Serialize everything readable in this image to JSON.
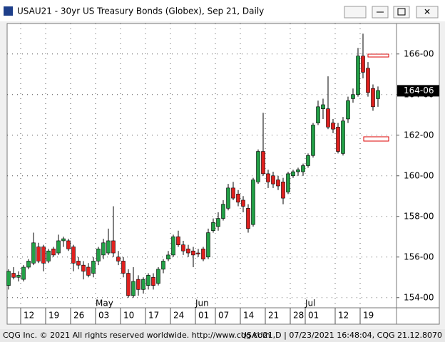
{
  "window_title": "USAU21 - 30yr US Treasury Bonds (Globex), Sep 21, Daily",
  "footer_left": "CQG Inc. © 2021 All rights reserved worldwide. http://www.cqg.com",
  "footer_right": "USAU21,D | 07/23/2021 16:48:04, CQG 21.12.8070",
  "chart_data": {
    "type": "candlestick",
    "categories": [
      null,
      null,
      null,
      "12",
      null,
      null,
      null,
      null,
      "19",
      null,
      null,
      null,
      null,
      "26",
      null,
      null,
      null,
      null,
      "03",
      null,
      null,
      null,
      null,
      "10",
      null,
      null,
      null,
      null,
      "17",
      null,
      null,
      null,
      null,
      "24",
      null,
      null,
      null,
      null,
      "01",
      null,
      null,
      null,
      "07",
      null,
      null,
      null,
      null,
      "14",
      null,
      null,
      null,
      null,
      "21",
      null,
      null,
      null,
      null,
      "28",
      null,
      null,
      "01",
      null,
      null,
      null,
      null,
      null,
      "12",
      null,
      null,
      null,
      null,
      "19",
      null,
      null,
      null
    ],
    "months": [
      {
        "label": "May",
        "index": 18
      },
      {
        "label": "Jun",
        "index": 38
      },
      {
        "label": "Jul",
        "index": 60
      }
    ],
    "open": [
      154.6,
      155.2,
      155.0,
      154.9,
      155.5,
      155.7,
      156.5,
      156.5,
      155.8,
      156.4,
      156.2,
      156.8,
      156.8,
      156.5,
      155.8,
      155.6,
      155.5,
      155.2,
      155.8,
      156.1,
      156.2,
      156.8,
      156.0,
      155.8,
      155.2,
      154.1,
      154.9,
      154.4,
      154.6,
      155.0,
      154.7,
      155.4,
      155.9,
      156.1,
      157.0,
      156.6,
      156.4,
      156.3,
      156.2,
      156.4,
      156.0,
      157.3,
      157.5,
      157.9,
      158.4,
      159.4,
      159.1,
      158.8,
      158.4,
      157.6,
      159.7,
      161.2,
      160.1,
      160.0,
      159.8,
      159.7,
      159.2,
      160.0,
      160.2,
      160.2,
      160.5,
      161.0,
      162.6,
      163.3,
      163.3,
      162.6,
      162.4,
      161.1,
      162.8,
      163.8,
      164.0,
      165.9,
      165.3,
      164.3,
      163.8
    ],
    "high": [
      155.4,
      155.5,
      155.3,
      155.6,
      155.9,
      157.2,
      156.7,
      156.6,
      156.4,
      156.5,
      157.1,
      157.0,
      156.9,
      156.6,
      156.0,
      155.8,
      155.7,
      156.0,
      156.5,
      156.9,
      157.4,
      158.5,
      156.3,
      156.0,
      155.4,
      155.5,
      155.1,
      155.0,
      155.2,
      155.2,
      155.5,
      155.9,
      156.3,
      157.1,
      157.3,
      156.8,
      156.6,
      156.5,
      156.4,
      156.5,
      157.4,
      157.9,
      158.2,
      158.8,
      159.6,
      159.7,
      159.3,
      159.0,
      158.6,
      159.9,
      161.3,
      163.1,
      160.3,
      160.2,
      160.0,
      159.9,
      160.2,
      160.3,
      160.4,
      160.6,
      161.1,
      162.6,
      163.7,
      163.8,
      164.9,
      162.8,
      162.6,
      162.9,
      163.9,
      164.3,
      166.3,
      167.0,
      165.6,
      164.5,
      164.4
    ],
    "low": [
      154.4,
      154.9,
      154.8,
      154.8,
      155.4,
      155.6,
      155.7,
      155.3,
      155.7,
      156.0,
      156.1,
      156.5,
      156.3,
      155.3,
      155.4,
      154.9,
      155.0,
      155.0,
      155.6,
      155.9,
      156.1,
      156.0,
      155.6,
      155.0,
      154.0,
      154.0,
      154.1,
      154.2,
      154.4,
      154.4,
      154.6,
      155.2,
      155.8,
      156.0,
      156.5,
      156.1,
      156.0,
      155.5,
      156.0,
      155.8,
      155.9,
      157.2,
      157.3,
      157.8,
      158.3,
      158.8,
      158.5,
      158.2,
      157.2,
      157.5,
      159.6,
      160.0,
      159.4,
      159.4,
      159.3,
      158.6,
      159.1,
      159.9,
      160.0,
      160.0,
      160.4,
      160.9,
      162.5,
      162.8,
      162.3,
      162.1,
      161.1,
      161.0,
      162.6,
      163.6,
      163.9,
      164.8,
      163.9,
      163.2,
      163.4
    ],
    "close": [
      155.3,
      155.0,
      155.1,
      155.5,
      155.8,
      156.7,
      155.8,
      155.7,
      156.3,
      156.1,
      156.8,
      156.9,
      156.4,
      155.7,
      155.6,
      155.3,
      155.1,
      155.8,
      156.4,
      156.7,
      156.8,
      156.2,
      155.8,
      155.2,
      154.1,
      154.8,
      154.4,
      154.9,
      155.1,
      154.6,
      155.4,
      155.8,
      156.1,
      157.0,
      156.6,
      156.3,
      156.2,
      156.1,
      156.15,
      155.9,
      157.2,
      157.7,
      157.9,
      158.6,
      159.4,
      158.9,
      158.7,
      158.5,
      157.4,
      159.8,
      161.2,
      160.1,
      159.7,
      159.6,
      159.5,
      158.9,
      160.1,
      160.2,
      160.3,
      160.5,
      161.0,
      162.5,
      163.4,
      163.5,
      162.4,
      162.3,
      161.2,
      162.7,
      163.7,
      164.0,
      165.9,
      165.1,
      164.1,
      163.4,
      164.2
    ],
    "up_color": "#22a046",
    "down_color": "#e0201e",
    "ylim": [
      153.5,
      167.5
    ],
    "yticks": [
      {
        "value": 154,
        "label": "154-00"
      },
      {
        "value": 156,
        "label": "156-00"
      },
      {
        "value": 158,
        "label": "158-00"
      },
      {
        "value": 160,
        "label": "160-00"
      },
      {
        "value": 162,
        "label": "162-00"
      },
      {
        "value": 164,
        "label": "164-00"
      },
      {
        "value": 166,
        "label": "166-00"
      }
    ],
    "last_price": {
      "value": 164.1875,
      "label": "164-06"
    },
    "grid": true
  }
}
